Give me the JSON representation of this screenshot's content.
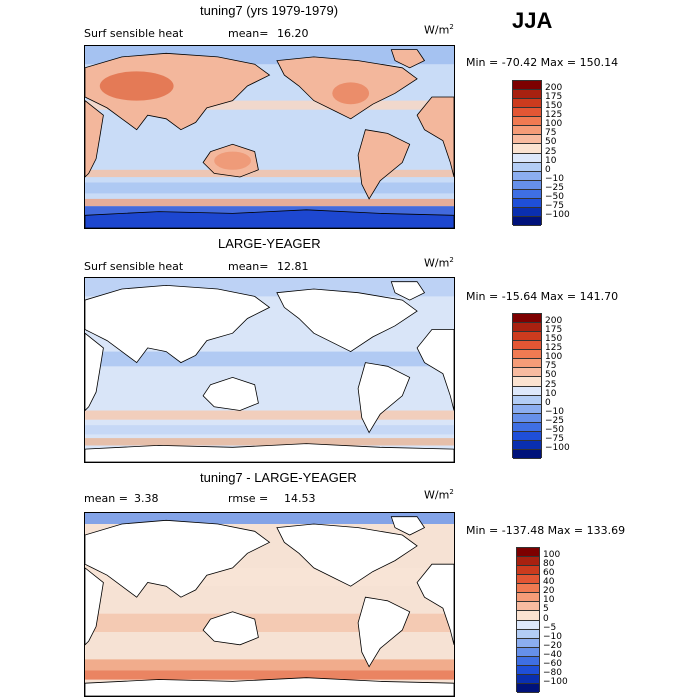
{
  "season": "JJA",
  "colors": {
    "ocean_light": "#c9dcf7",
    "land": "#ffffff",
    "coast": "#000000"
  },
  "panels": [
    {
      "title": "tuning7 (yrs 1979-1979)",
      "variable": "Surf sensible heat",
      "stat1_label": "mean=",
      "stat1_value": "16.20",
      "stat2_label": "",
      "stat2_value": "",
      "units": "W/m",
      "units_sup": "2",
      "range": "Min = -70.42 Max = 150.14",
      "land_filled": true,
      "levels": [
        "200",
        "175",
        "150",
        "125",
        "100",
        "75",
        "50",
        "25",
        "10",
        "0",
        "−10",
        "−25",
        "−50",
        "−75",
        "−100"
      ],
      "swatches": [
        "#7d0000",
        "#a82110",
        "#cc3b1e",
        "#e35634",
        "#f07a52",
        "#f59c78",
        "#f8bba0",
        "#fbe3d1",
        "#dde8fb",
        "#b3cdf5",
        "#8caef0",
        "#6690ea",
        "#3f6fe3",
        "#1f4fd8",
        "#0a2fb0",
        "#00127a"
      ]
    },
    {
      "title": "LARGE-YEAGER",
      "variable": "Surf sensible heat",
      "stat1_label": "mean=",
      "stat1_value": "12.81",
      "stat2_label": "",
      "stat2_value": "",
      "units": "W/m",
      "units_sup": "2",
      "range": "Min = -15.64 Max = 141.70",
      "land_filled": false,
      "levels": [
        "200",
        "175",
        "150",
        "125",
        "100",
        "75",
        "50",
        "25",
        "10",
        "0",
        "−10",
        "−25",
        "−50",
        "−75",
        "−100"
      ],
      "swatches": [
        "#7d0000",
        "#a82110",
        "#cc3b1e",
        "#e35634",
        "#f07a52",
        "#f59c78",
        "#f8bba0",
        "#fbe3d1",
        "#dde8fb",
        "#b3cdf5",
        "#8caef0",
        "#6690ea",
        "#3f6fe3",
        "#1f4fd8",
        "#0a2fb0",
        "#00127a"
      ]
    },
    {
      "title": "tuning7 - LARGE-YEAGER",
      "variable": "",
      "stat1_label": "mean =",
      "stat1_value": "3.38",
      "stat2_label": "rmse =",
      "stat2_value": "14.53",
      "units": "W/m",
      "units_sup": "2",
      "range": "Min = -137.48 Max = 133.69",
      "land_filled": false,
      "levels": [
        "100",
        "80",
        "60",
        "40",
        "20",
        "10",
        "5",
        "0",
        "−5",
        "−10",
        "−20",
        "−40",
        "−60",
        "−80",
        "−100"
      ],
      "swatches": [
        "#7d0000",
        "#a82110",
        "#cc3b1e",
        "#e35634",
        "#f07a52",
        "#f59c78",
        "#f8bba0",
        "#fbe3d1",
        "#dde8fb",
        "#b3cdf5",
        "#8caef0",
        "#6690ea",
        "#3f6fe3",
        "#1f4fd8",
        "#0a2fb0",
        "#00127a"
      ]
    }
  ]
}
